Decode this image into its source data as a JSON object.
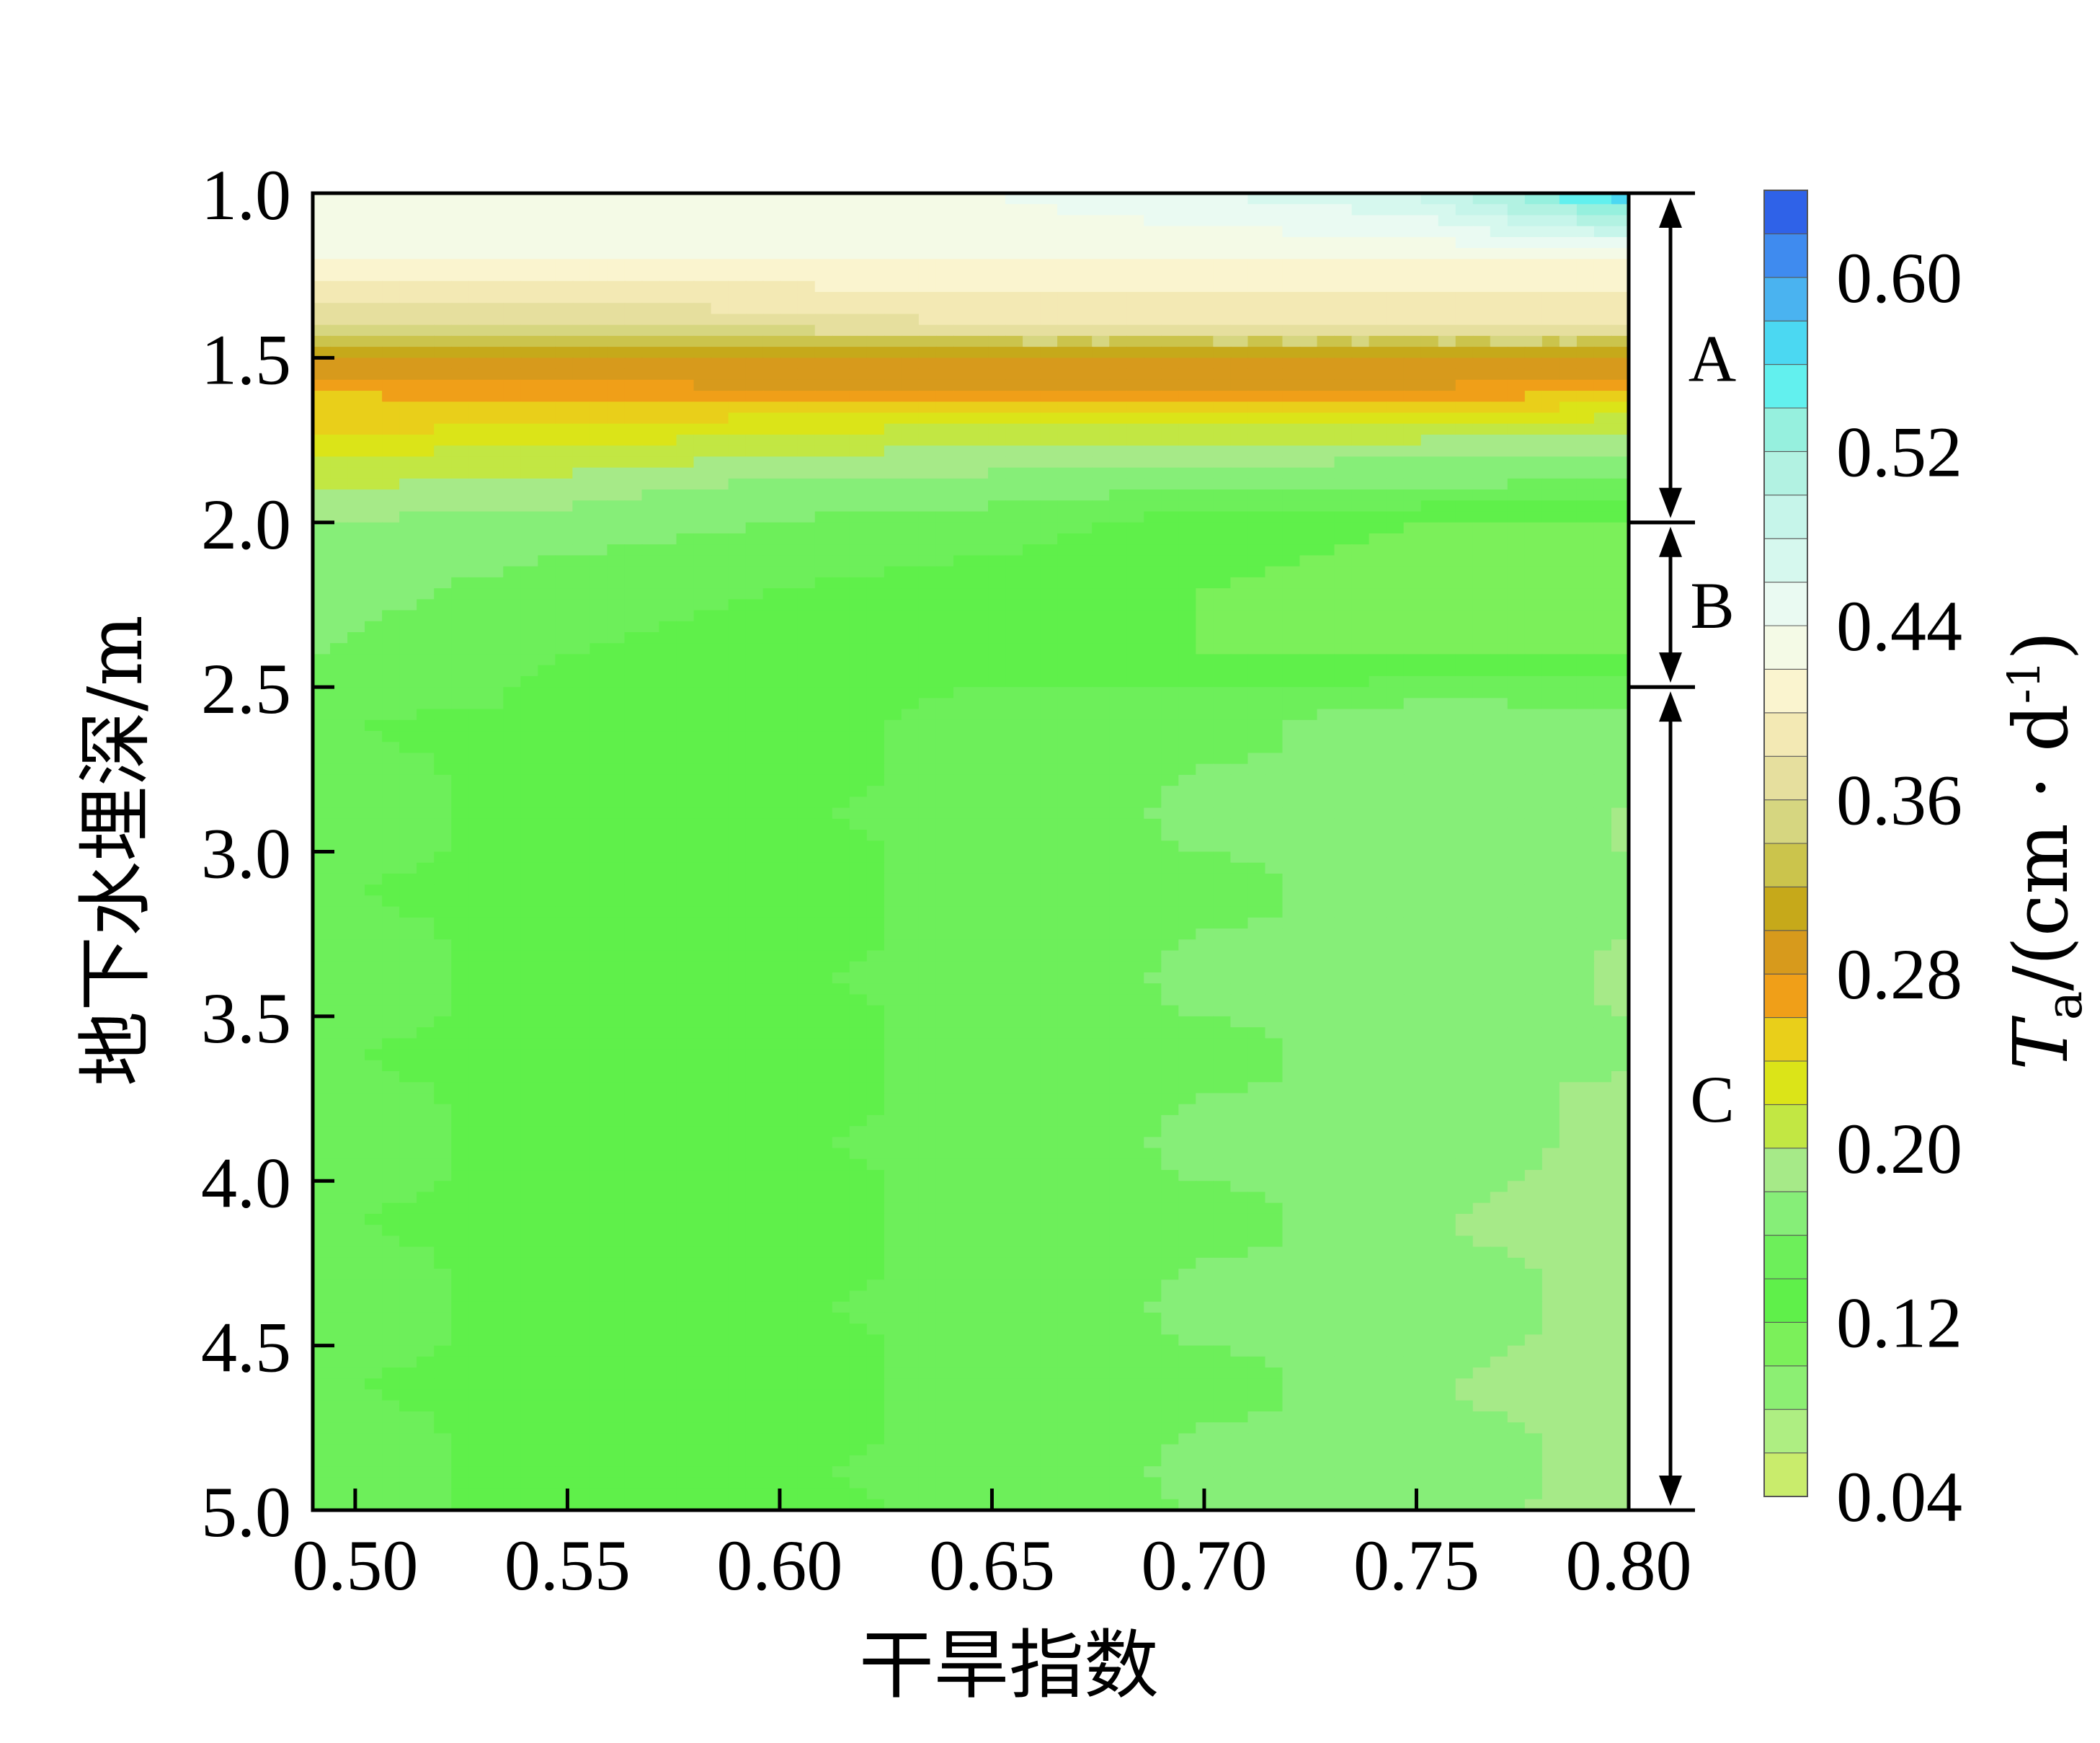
{
  "chart_data": {
    "type": "heatmap",
    "xlabel": "干旱指数",
    "ylabel": "地下水埋深/m",
    "colorbar_label": {
      "symbol": "T",
      "subscript": "a",
      "unit": "/(cm · d",
      "exponent": "-1",
      "close": ")"
    },
    "x_ticks": [
      "0.50",
      "0.55",
      "0.60",
      "0.65",
      "0.70",
      "0.75",
      "0.80"
    ],
    "x_tick_values": [
      0.5,
      0.55,
      0.6,
      0.65,
      0.7,
      0.75,
      0.8
    ],
    "y_ticks": [
      "1.0",
      "1.5",
      "2.0",
      "2.5",
      "3.0",
      "3.5",
      "4.0",
      "4.5",
      "5.0"
    ],
    "y_tick_values": [
      1.0,
      1.5,
      2.0,
      2.5,
      3.0,
      3.5,
      4.0,
      4.5,
      5.0
    ],
    "xlim": [
      0.49,
      0.8
    ],
    "ylim": [
      1.0,
      5.0
    ],
    "y_inverted": true,
    "colorbar_ticks": [
      "0.60",
      "0.52",
      "0.44",
      "0.36",
      "0.28",
      "0.20",
      "0.12",
      "0.04"
    ],
    "colorbar_range": [
      0.04,
      0.64
    ],
    "colorbar_levels": [
      0.04,
      0.06,
      0.08,
      0.1,
      0.12,
      0.14,
      0.16,
      0.18,
      0.2,
      0.22,
      0.24,
      0.26,
      0.28,
      0.3,
      0.32,
      0.34,
      0.36,
      0.38,
      0.4,
      0.42,
      0.44,
      0.46,
      0.48,
      0.5,
      0.52,
      0.54,
      0.56,
      0.58,
      0.6,
      0.62,
      0.64
    ],
    "colorbar_colors": [
      "#c9ec6c",
      "#aeee82",
      "#8cef73",
      "#7bf05a",
      "#5ff04a",
      "#6def5a",
      "#86ee78",
      "#a6ea88",
      "#c2e743",
      "#dbe418",
      "#e9cf1a",
      "#f09f18",
      "#d79a1c",
      "#c6a91a",
      "#cbc44c",
      "#d6d680",
      "#e6df9e",
      "#f3e9b4",
      "#faf4cf",
      "#f4fae6",
      "#eafaf2",
      "#d6f8ee",
      "#c6f5ea",
      "#b2f2e2",
      "#96f0de",
      "#62f0ee",
      "#4bd8f2",
      "#4ab3f0",
      "#3f8bef",
      "#2f62e8"
    ],
    "zones": [
      {
        "label": "A",
        "from": 1.0,
        "to": 2.0
      },
      {
        "label": "B",
        "from": 2.0,
        "to": 2.5
      },
      {
        "label": "C",
        "from": 2.5,
        "to": 5.0
      }
    ],
    "grid": false,
    "field_summary": {
      "depth_rows": [
        1.0,
        1.2,
        1.4,
        1.5,
        1.6,
        1.7,
        1.8,
        1.9,
        2.0,
        2.2,
        2.4,
        2.6,
        3.0,
        3.5,
        4.0,
        4.5,
        5.0
      ],
      "aridity_cols": [
        0.49,
        0.55,
        0.6,
        0.65,
        0.7,
        0.75,
        0.8
      ],
      "values": [
        [
          0.44,
          0.44,
          0.44,
          0.44,
          0.46,
          0.48,
          0.58
        ],
        [
          0.42,
          0.42,
          0.42,
          0.42,
          0.42,
          0.42,
          0.42
        ],
        [
          0.36,
          0.36,
          0.37,
          0.38,
          0.38,
          0.38,
          0.38
        ],
        [
          0.3,
          0.3,
          0.3,
          0.3,
          0.3,
          0.3,
          0.3
        ],
        [
          0.26,
          0.27,
          0.28,
          0.29,
          0.29,
          0.28,
          0.26
        ],
        [
          0.25,
          0.24,
          0.23,
          0.22,
          0.22,
          0.22,
          0.21
        ],
        [
          0.22,
          0.21,
          0.2,
          0.19,
          0.19,
          0.18,
          0.18
        ],
        [
          0.2,
          0.19,
          0.17,
          0.17,
          0.16,
          0.16,
          0.15
        ],
        [
          0.18,
          0.17,
          0.16,
          0.15,
          0.13,
          0.12,
          0.12
        ],
        [
          0.17,
          0.15,
          0.14,
          0.13,
          0.12,
          0.11,
          0.11
        ],
        [
          0.16,
          0.14,
          0.13,
          0.13,
          0.12,
          0.12,
          0.12
        ],
        [
          0.15,
          0.13,
          0.13,
          0.15,
          0.16,
          0.17,
          0.17
        ],
        [
          0.15,
          0.13,
          0.13,
          0.15,
          0.16,
          0.17,
          0.18
        ],
        [
          0.15,
          0.13,
          0.13,
          0.15,
          0.16,
          0.17,
          0.18
        ],
        [
          0.15,
          0.13,
          0.13,
          0.15,
          0.16,
          0.17,
          0.19
        ],
        [
          0.15,
          0.13,
          0.13,
          0.15,
          0.16,
          0.17,
          0.19
        ],
        [
          0.15,
          0.13,
          0.13,
          0.15,
          0.16,
          0.17,
          0.19
        ]
      ]
    }
  }
}
